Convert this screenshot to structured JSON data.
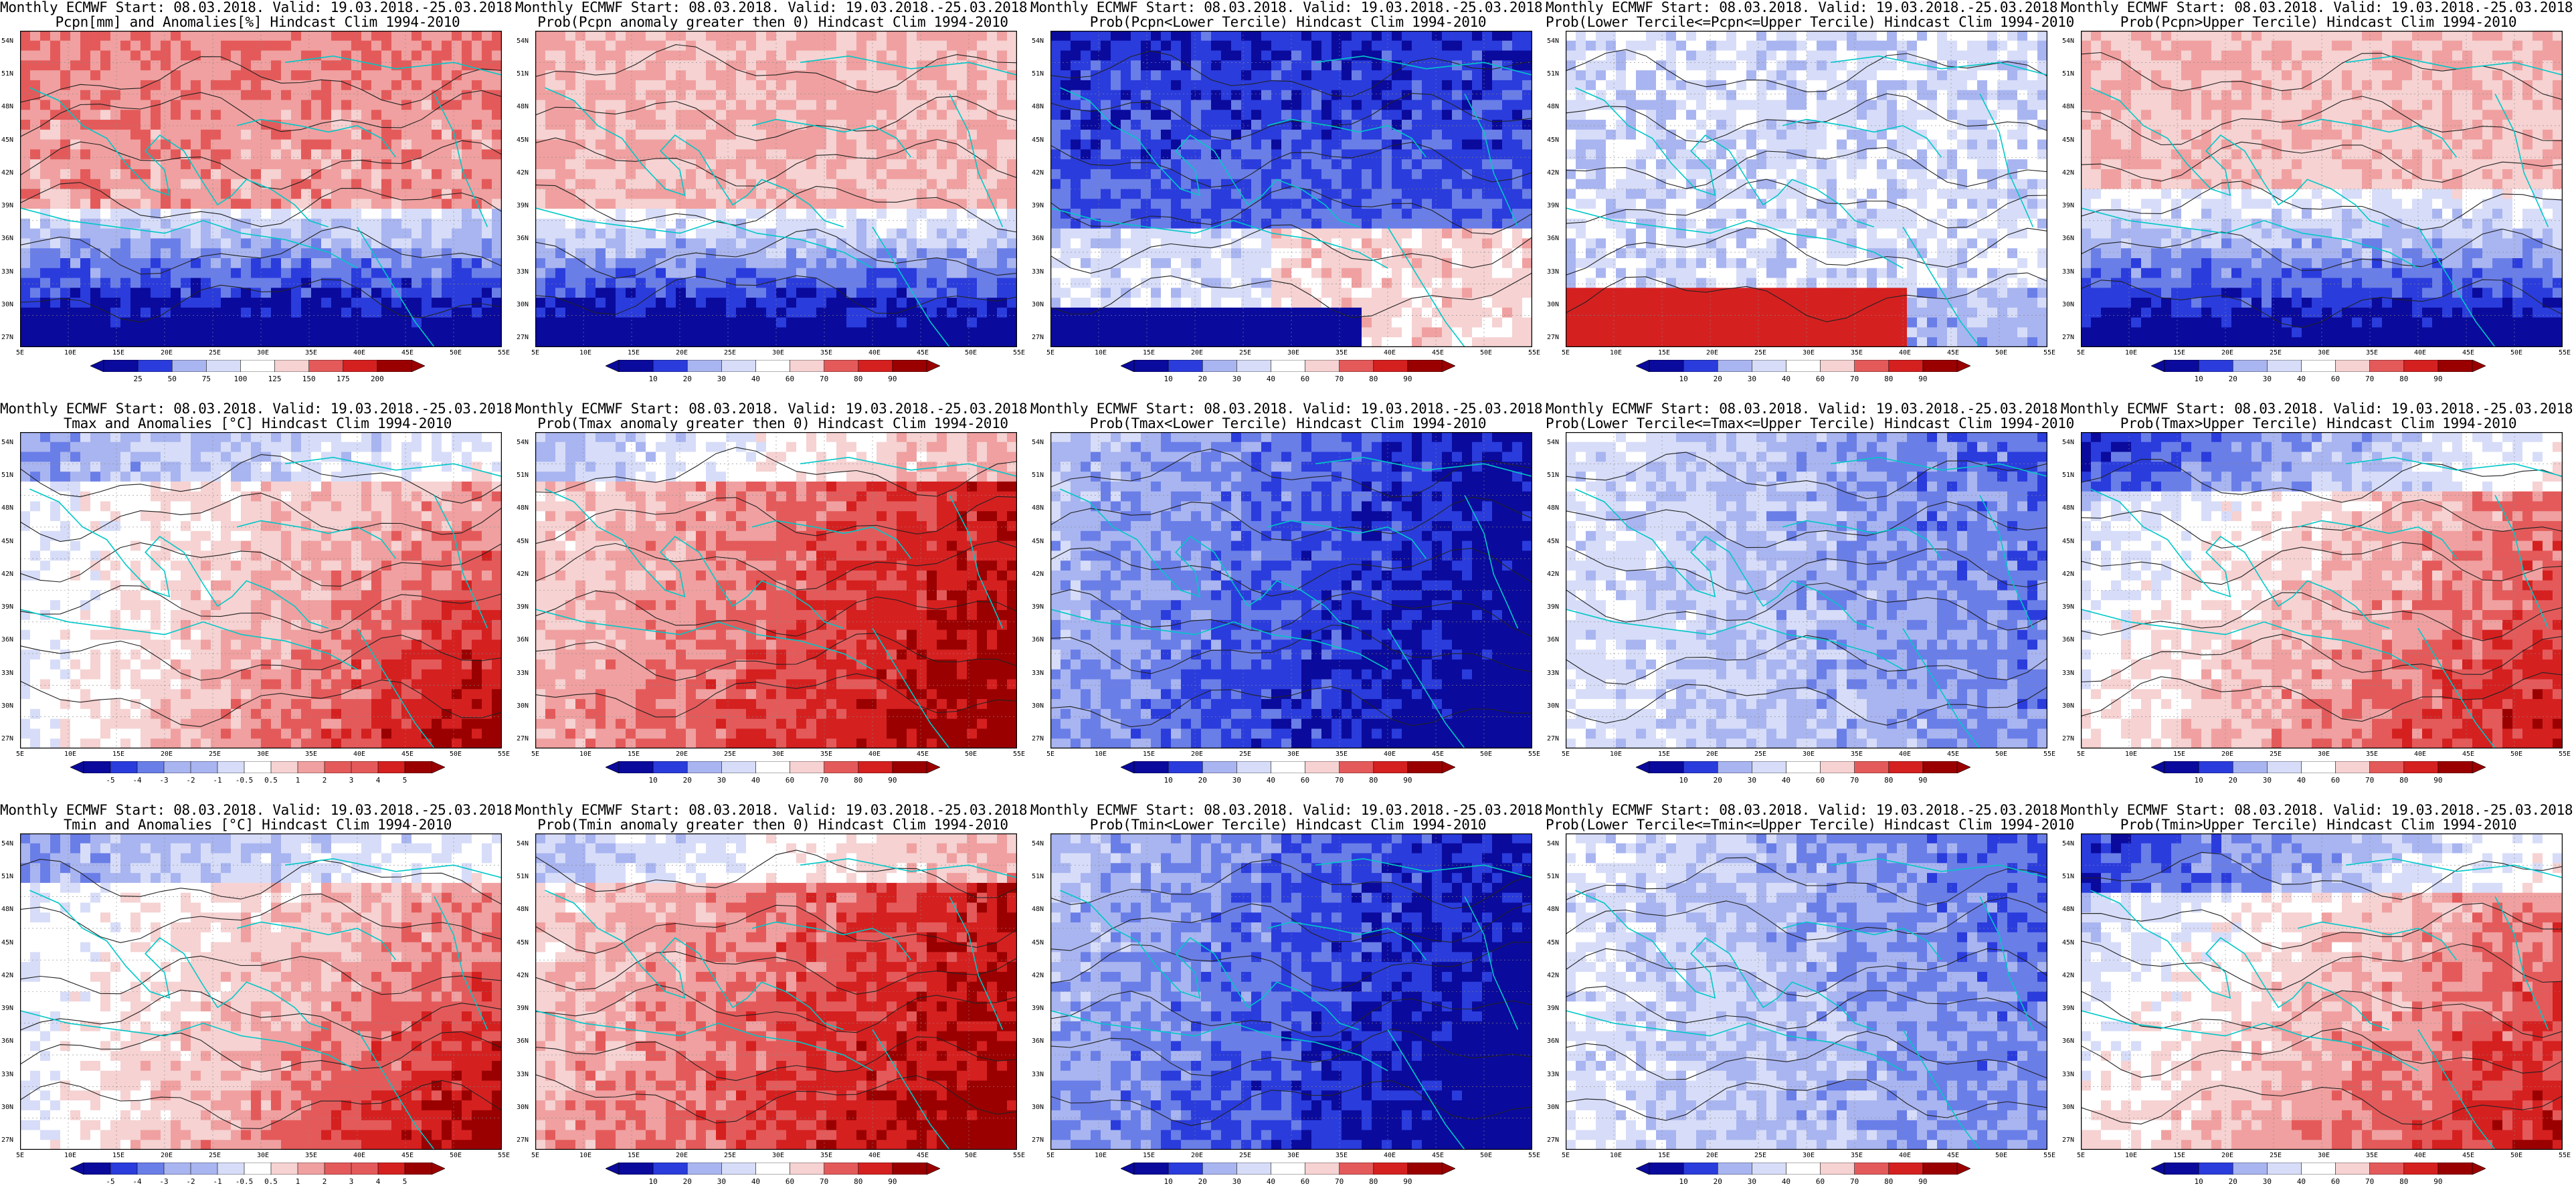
{
  "layout": {
    "rows": 3,
    "cols": 5
  },
  "colors": {
    "deep_blue": "#0a0a9c",
    "blue": "#2a3cdc",
    "mid_blue": "#6a7ee8",
    "light_blue": "#a9b5f0",
    "pale_blue": "#d7ddf8",
    "white": "#ffffff",
    "pale_red": "#f6d2d2",
    "light_red": "#f0a0a0",
    "mid_red": "#e45a5a",
    "red": "#d52020",
    "deep_red": "#9a0000",
    "coast": "#00c8c8",
    "contour": "#222222"
  },
  "axes": {
    "lat_labels": [
      "54N",
      "51N",
      "48N",
      "45N",
      "42N",
      "39N",
      "36N",
      "33N",
      "30N",
      "27N"
    ],
    "lon_labels": [
      "5E",
      "10E",
      "15E",
      "20E",
      "25E",
      "30E",
      "35E",
      "40E",
      "45E",
      "50E",
      "55E"
    ]
  },
  "colorbars": {
    "anom_precip": [
      "25",
      "50",
      "75",
      "100",
      "125",
      "150",
      "175",
      "200"
    ],
    "prob": [
      "10",
      "20",
      "30",
      "40",
      "60",
      "70",
      "80",
      "90"
    ],
    "anom_temp": [
      "-5",
      "-4",
      "-3",
      "-2",
      "-1",
      "-0.5",
      "0.5",
      "1",
      "2",
      "3",
      "4",
      "5"
    ]
  },
  "panels": [
    {
      "t1": "Monthly ECMWF Start: 08.03.2018. Valid: 19.03.2018.-25.03.2018.",
      "t2": "Pcpn[mm] and Anomalies[%] Hindcast Clim 1994-2010",
      "pattern": "pcp_anom",
      "bar": "anom_precip"
    },
    {
      "t1": "Monthly ECMWF Start: 08.03.2018. Valid: 19.03.2018.-25.03.2018.",
      "t2": "Prob(Pcpn anomaly greater then 0) Hindcast Clim 1994-2010",
      "pattern": "pcp_pos",
      "bar": "prob"
    },
    {
      "t1": "Monthly ECMWF Start: 08.03.2018. Valid: 19.03.2018.-25.03.2018.",
      "t2": "Prob(Pcpn<Lower Tercile) Hindcast Clim 1994-2010",
      "pattern": "pcp_low",
      "bar": "prob"
    },
    {
      "t1": "Monthly ECMWF Start: 08.03.2018. Valid: 19.03.2018.-25.03.2018.",
      "t2": "Prob(Lower Tercile<=Pcpn<=Upper Tercile) Hindcast Clim 1994-2010",
      "pattern": "pcp_mid",
      "bar": "prob"
    },
    {
      "t1": "Monthly ECMWF Start: 08.03.2018. Valid: 19.03.2018.-25.03.2018.",
      "t2": "Prob(Pcpn>Upper Tercile) Hindcast Clim 1994-2010",
      "pattern": "pcp_up",
      "bar": "prob"
    },
    {
      "t1": "Monthly ECMWF Start: 08.03.2018. Valid: 19.03.2018.-25.03.2018.",
      "t2": "Tmax and Anomalies [°C] Hindcast Clim 1994-2010",
      "pattern": "warm_anom",
      "bar": "anom_temp"
    },
    {
      "t1": "Monthly ECMWF Start: 08.03.2018. Valid: 19.03.2018.-25.03.2018.",
      "t2": "Prob(Tmax anomaly greater then 0) Hindcast Clim 1994-2010",
      "pattern": "warm_pos",
      "bar": "prob"
    },
    {
      "t1": "Monthly ECMWF Start: 08.03.2018. Valid: 19.03.2018.-25.03.2018.",
      "t2": "Prob(Tmax<Lower Tercile) Hindcast Clim 1994-2010",
      "pattern": "cold_low",
      "bar": "prob"
    },
    {
      "t1": "Monthly ECMWF Start: 08.03.2018. Valid: 19.03.2018.-25.03.2018.",
      "t2": "Prob(Lower Tercile<=Tmax<=Upper Tercile) Hindcast Clim 1994-2010",
      "pattern": "mid_blue",
      "bar": "prob"
    },
    {
      "t1": "Monthly ECMWF Start: 08.03.2018. Valid: 19.03.2018.-25.03.2018.",
      "t2": "Prob(Tmax>Upper Tercile) Hindcast Clim 1994-2010",
      "pattern": "warm_up",
      "bar": "prob"
    },
    {
      "t1": "Monthly ECMWF Start: 08.03.2018. Valid: 19.03.2018.-25.03.2018.",
      "t2": "Tmin and Anomalies [°C] Hindcast Clim 1994-2010",
      "pattern": "warm_anom",
      "bar": "anom_temp"
    },
    {
      "t1": "Monthly ECMWF Start: 08.03.2018. Valid: 19.03.2018.-25.03.2018.",
      "t2": "Prob(Tmin anomaly greater then 0) Hindcast Clim 1994-2010",
      "pattern": "warm_pos",
      "bar": "prob"
    },
    {
      "t1": "Monthly ECMWF Start: 08.03.2018. Valid: 19.03.2018.-25.03.2018.",
      "t2": "Prob(Tmin<Lower Tercile) Hindcast Clim 1994-2010",
      "pattern": "cold_low",
      "bar": "prob"
    },
    {
      "t1": "Monthly ECMWF Start: 08.03.2018. Valid: 19.03.2018.-25.03.2018.",
      "t2": "Prob(Lower Tercile<=Tmin<=Upper Tercile) Hindcast Clim 1994-2010",
      "pattern": "mid_blue",
      "bar": "prob"
    },
    {
      "t1": "Monthly ECMWF Start: 08.03.2018. Valid: 19.03.2018.-25.03.2018.",
      "t2": "Prob(Tmin>Upper Tercile) Hindcast Clim 1994-2010",
      "pattern": "warm_up",
      "bar": "prob"
    }
  ]
}
